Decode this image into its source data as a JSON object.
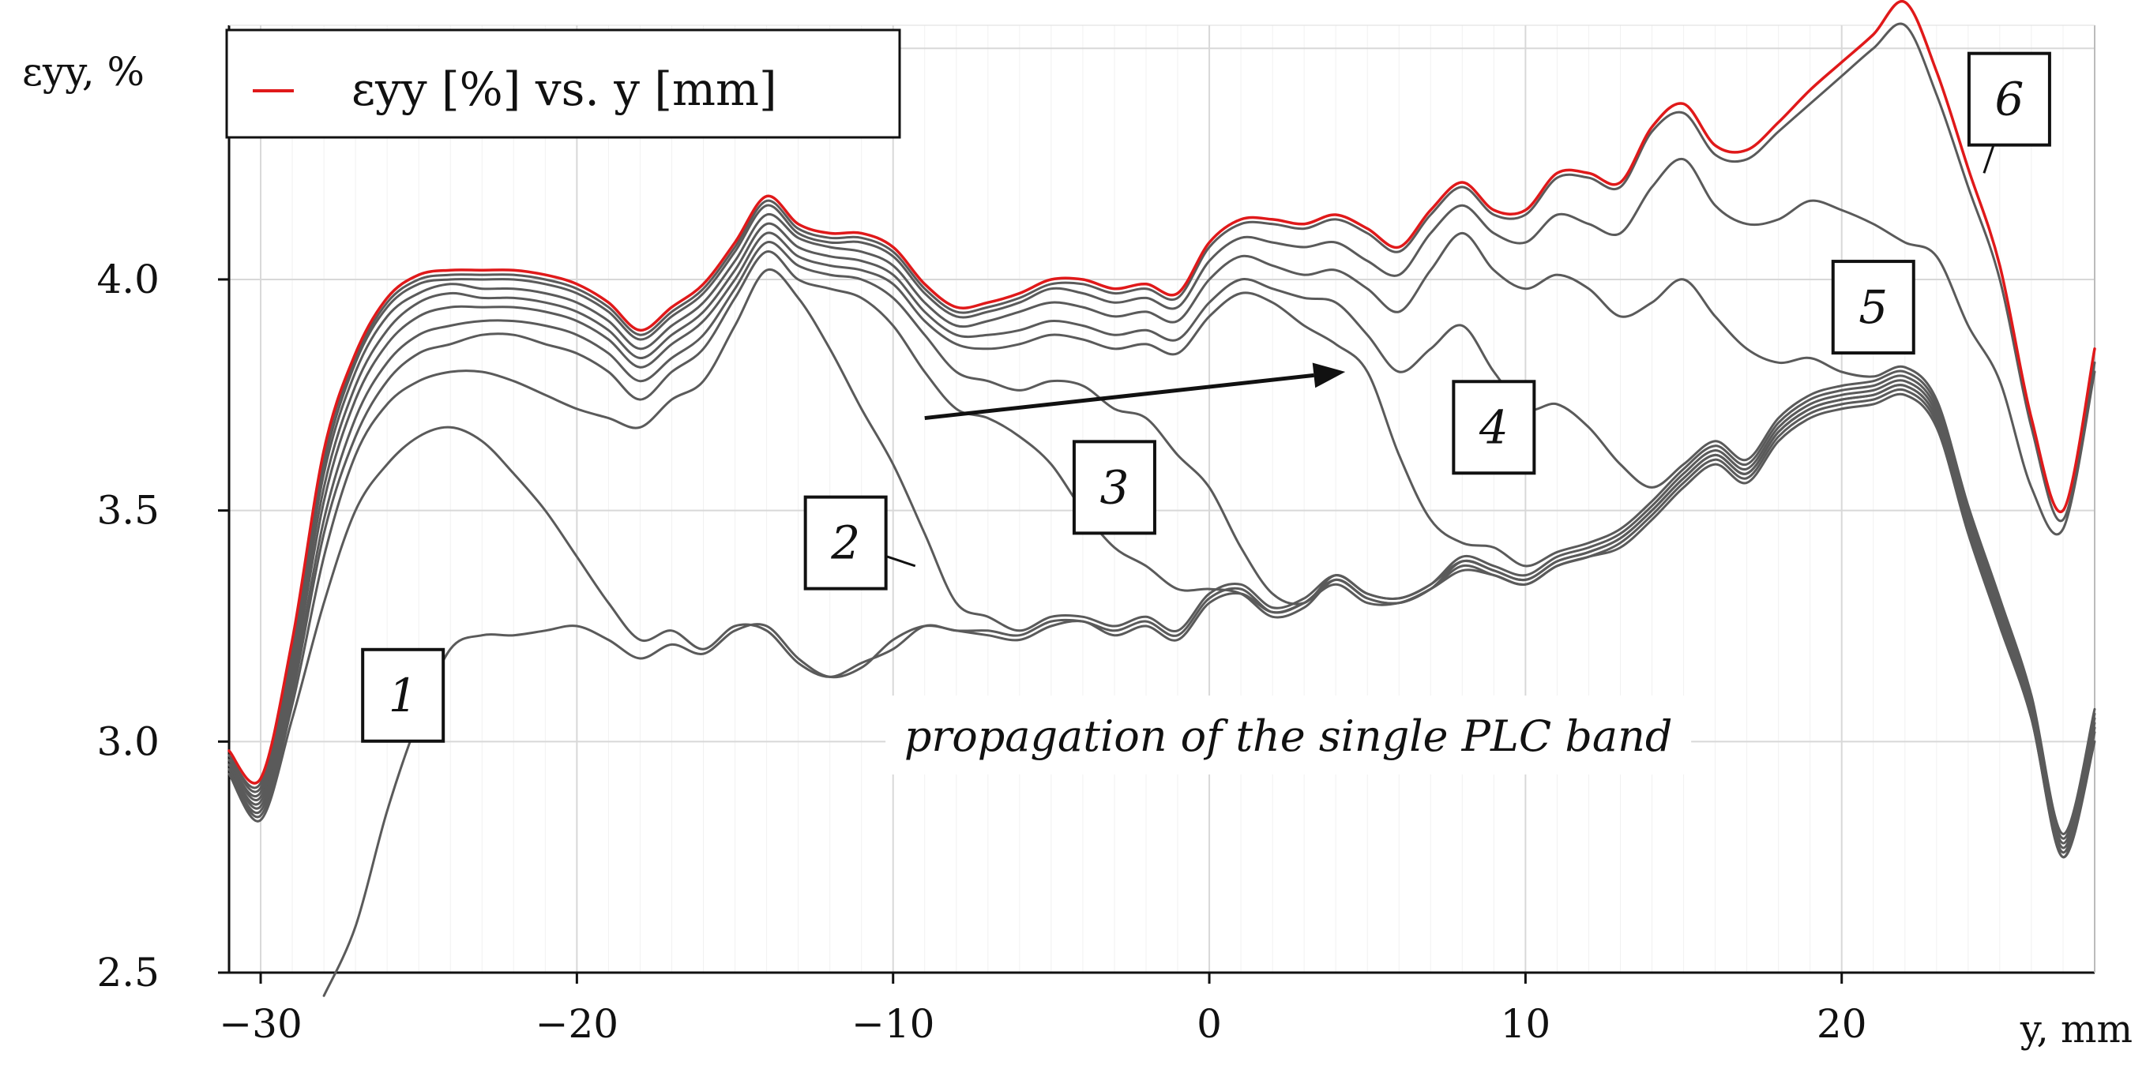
{
  "chart_data": {
    "type": "line",
    "title": "",
    "xlabel": "y, mm",
    "ylabel": "εyy, %",
    "xlim": [
      -31,
      28
    ],
    "ylim": [
      2.5,
      4.55
    ],
    "grid": true,
    "legend": {
      "position": "top-left",
      "entries": [
        {
          "label": "εyy [%] vs. y [mm]",
          "color": "#e0191a"
        }
      ]
    },
    "x_ticks": [
      {
        "value": -30,
        "label": "−30"
      },
      {
        "value": -20,
        "label": "−20"
      },
      {
        "value": -10,
        "label": "−10"
      },
      {
        "value": 0,
        "label": "0"
      },
      {
        "value": 10,
        "label": "10"
      },
      {
        "value": 20,
        "label": "20"
      }
    ],
    "y_ticks": [
      {
        "value": 2.5,
        "label": "2.5"
      },
      {
        "value": 3.0,
        "label": "3.0"
      },
      {
        "value": 3.5,
        "label": "3.5"
      },
      {
        "value": 4.0,
        "label": "4.0"
      }
    ],
    "x": [
      -31,
      -30,
      -29,
      -28,
      -27,
      -26,
      -25,
      -24,
      -23,
      -22,
      -21,
      -20,
      -19,
      -18,
      -17,
      -16,
      -15,
      -14,
      -13,
      -12,
      -11,
      -10,
      -9,
      -8,
      -7,
      -6,
      -5,
      -4,
      -3,
      -2,
      -1,
      0,
      1,
      2,
      3,
      4,
      5,
      6,
      7,
      8,
      9,
      10,
      11,
      12,
      13,
      14,
      15,
      16,
      17,
      18,
      19,
      20,
      21,
      22,
      23,
      24,
      25,
      26,
      27,
      28
    ],
    "series": [
      {
        "name": "profile-1",
        "label": "1",
        "color": "#5a5a5a",
        "values": [
          null,
          null,
          null,
          2.45,
          2.6,
          2.85,
          3.05,
          3.2,
          3.23,
          3.23,
          3.24,
          3.25,
          3.22,
          3.18,
          3.21,
          3.19,
          3.24,
          3.25,
          3.18,
          3.14,
          3.16,
          3.22,
          3.25,
          3.24,
          3.23,
          3.22,
          3.25,
          3.26,
          3.23,
          3.25,
          3.22,
          3.3,
          3.32,
          3.28,
          3.3,
          3.34,
          3.3,
          3.3,
          3.33,
          3.37,
          3.36,
          3.34,
          3.38,
          3.4,
          3.42,
          3.48,
          3.55,
          3.6,
          3.56,
          3.65,
          3.7,
          3.72,
          3.73,
          3.75,
          3.68,
          3.45,
          3.25,
          3.05,
          2.75,
          3.0
        ]
      },
      {
        "name": "profile-2",
        "label": "2",
        "color": "#5a5a5a",
        "values": [
          2.93,
          2.83,
          3.05,
          3.3,
          3.5,
          3.6,
          3.66,
          3.68,
          3.65,
          3.58,
          3.5,
          3.4,
          3.3,
          3.22,
          3.24,
          3.2,
          3.25,
          3.24,
          3.17,
          3.14,
          3.17,
          3.2,
          3.25,
          3.24,
          3.24,
          3.23,
          3.26,
          3.26,
          3.24,
          3.26,
          3.23,
          3.31,
          3.33,
          3.28,
          3.3,
          3.35,
          3.31,
          3.3,
          3.33,
          3.38,
          3.36,
          3.34,
          3.38,
          3.4,
          3.43,
          3.49,
          3.56,
          3.61,
          3.57,
          3.66,
          3.71,
          3.73,
          3.74,
          3.76,
          3.69,
          3.46,
          3.26,
          3.05,
          2.75,
          3.02
        ]
      },
      {
        "name": "profile-2b",
        "label": "",
        "color": "#5a5a5a",
        "values": [
          2.94,
          2.84,
          3.08,
          3.4,
          3.62,
          3.73,
          3.78,
          3.8,
          3.8,
          3.78,
          3.75,
          3.72,
          3.7,
          3.68,
          3.74,
          3.78,
          3.9,
          4.02,
          3.96,
          3.85,
          3.72,
          3.6,
          3.45,
          3.3,
          3.27,
          3.24,
          3.27,
          3.27,
          3.25,
          3.27,
          3.24,
          3.32,
          3.34,
          3.29,
          3.31,
          3.36,
          3.32,
          3.31,
          3.34,
          3.39,
          3.37,
          3.35,
          3.39,
          3.41,
          3.44,
          3.5,
          3.57,
          3.62,
          3.58,
          3.67,
          3.72,
          3.74,
          3.75,
          3.77,
          3.7,
          3.47,
          3.27,
          3.06,
          2.76,
          3.03
        ]
      },
      {
        "name": "profile-3",
        "label": "3",
        "color": "#5a5a5a",
        "values": [
          2.94,
          2.85,
          3.1,
          3.45,
          3.66,
          3.78,
          3.84,
          3.86,
          3.88,
          3.88,
          3.86,
          3.84,
          3.8,
          3.74,
          3.8,
          3.85,
          3.96,
          4.06,
          4.0,
          3.98,
          3.96,
          3.9,
          3.8,
          3.72,
          3.7,
          3.66,
          3.6,
          3.5,
          3.42,
          3.38,
          3.33,
          3.33,
          3.32,
          3.27,
          3.29,
          3.35,
          3.31,
          3.3,
          3.33,
          3.39,
          3.37,
          3.35,
          3.39,
          3.41,
          3.44,
          3.5,
          3.57,
          3.62,
          3.58,
          3.67,
          3.72,
          3.74,
          3.75,
          3.77,
          3.7,
          3.47,
          3.27,
          3.06,
          2.76,
          3.03
        ]
      },
      {
        "name": "profile-3b",
        "label": "",
        "color": "#5a5a5a",
        "values": [
          2.95,
          2.86,
          3.12,
          3.48,
          3.7,
          3.82,
          3.88,
          3.9,
          3.91,
          3.91,
          3.9,
          3.88,
          3.84,
          3.78,
          3.83,
          3.88,
          3.98,
          4.08,
          4.03,
          4.01,
          4.0,
          3.96,
          3.88,
          3.8,
          3.78,
          3.76,
          3.78,
          3.77,
          3.72,
          3.7,
          3.62,
          3.55,
          3.42,
          3.32,
          3.3,
          3.36,
          3.32,
          3.31,
          3.34,
          3.4,
          3.38,
          3.36,
          3.4,
          3.42,
          3.45,
          3.51,
          3.58,
          3.63,
          3.59,
          3.68,
          3.73,
          3.75,
          3.76,
          3.78,
          3.71,
          3.48,
          3.28,
          3.07,
          2.77,
          3.04
        ]
      },
      {
        "name": "profile-4",
        "label": "4",
        "color": "#5a5a5a",
        "values": [
          2.95,
          2.87,
          3.14,
          3.52,
          3.74,
          3.86,
          3.92,
          3.94,
          3.94,
          3.94,
          3.93,
          3.91,
          3.87,
          3.81,
          3.86,
          3.91,
          4.0,
          4.1,
          4.05,
          4.03,
          4.02,
          3.99,
          3.91,
          3.86,
          3.85,
          3.86,
          3.88,
          3.87,
          3.85,
          3.86,
          3.84,
          3.92,
          3.97,
          3.95,
          3.9,
          3.86,
          3.8,
          3.62,
          3.48,
          3.43,
          3.42,
          3.38,
          3.41,
          3.43,
          3.46,
          3.52,
          3.59,
          3.64,
          3.6,
          3.69,
          3.74,
          3.76,
          3.77,
          3.79,
          3.72,
          3.49,
          3.29,
          3.08,
          2.78,
          3.05
        ]
      },
      {
        "name": "profile-4b",
        "label": "",
        "color": "#5a5a5a",
        "values": [
          2.96,
          2.88,
          3.16,
          3.55,
          3.77,
          3.89,
          3.95,
          3.97,
          3.96,
          3.96,
          3.95,
          3.93,
          3.89,
          3.83,
          3.88,
          3.93,
          4.02,
          4.12,
          4.07,
          4.05,
          4.04,
          4.01,
          3.93,
          3.88,
          3.88,
          3.89,
          3.91,
          3.9,
          3.88,
          3.89,
          3.87,
          3.95,
          4.0,
          3.98,
          3.96,
          3.95,
          3.88,
          3.8,
          3.85,
          3.9,
          3.8,
          3.72,
          3.73,
          3.68,
          3.6,
          3.55,
          3.6,
          3.65,
          3.61,
          3.7,
          3.75,
          3.77,
          3.78,
          3.8,
          3.73,
          3.5,
          3.3,
          3.09,
          2.79,
          3.06
        ]
      },
      {
        "name": "profile-5",
        "label": "5",
        "color": "#5a5a5a",
        "values": [
          2.96,
          2.89,
          3.18,
          3.58,
          3.8,
          3.92,
          3.97,
          3.99,
          3.98,
          3.98,
          3.97,
          3.95,
          3.91,
          3.85,
          3.9,
          3.95,
          4.04,
          4.14,
          4.09,
          4.07,
          4.06,
          4.03,
          3.95,
          3.9,
          3.91,
          3.93,
          3.95,
          3.94,
          3.92,
          3.93,
          3.91,
          4.0,
          4.05,
          4.03,
          4.01,
          4.02,
          3.98,
          3.93,
          4.02,
          4.1,
          4.02,
          3.98,
          4.01,
          3.98,
          3.92,
          3.95,
          4.0,
          3.92,
          3.85,
          3.82,
          3.83,
          3.8,
          3.79,
          3.81,
          3.74,
          3.51,
          3.31,
          3.1,
          2.8,
          3.07
        ]
      },
      {
        "name": "profile-5b",
        "label": "",
        "color": "#5a5a5a",
        "values": [
          2.97,
          2.9,
          3.2,
          3.6,
          3.82,
          3.94,
          3.99,
          4.0,
          4.0,
          4.0,
          3.99,
          3.97,
          3.93,
          3.87,
          3.92,
          3.97,
          4.06,
          4.16,
          4.1,
          4.08,
          4.08,
          4.05,
          3.97,
          3.92,
          3.93,
          3.95,
          3.98,
          3.97,
          3.95,
          3.96,
          3.94,
          4.04,
          4.09,
          4.08,
          4.07,
          4.08,
          4.04,
          4.01,
          4.1,
          4.16,
          4.1,
          4.08,
          4.14,
          4.12,
          4.1,
          4.2,
          4.26,
          4.16,
          4.12,
          4.13,
          4.17,
          4.15,
          4.12,
          4.08,
          4.05,
          3.9,
          3.78,
          3.55,
          3.46,
          3.8
        ]
      },
      {
        "name": "profile-6",
        "label": "6",
        "color": "#5a5a5a",
        "values": [
          2.97,
          2.91,
          3.21,
          3.62,
          3.83,
          3.95,
          4.0,
          4.01,
          4.01,
          4.01,
          4.0,
          3.98,
          3.94,
          3.88,
          3.93,
          3.98,
          4.07,
          4.17,
          4.11,
          4.09,
          4.09,
          4.06,
          3.98,
          3.93,
          3.94,
          3.96,
          3.99,
          3.99,
          3.97,
          3.98,
          3.96,
          4.07,
          4.12,
          4.12,
          4.11,
          4.13,
          4.1,
          4.06,
          4.14,
          4.2,
          4.14,
          4.14,
          4.22,
          4.22,
          4.2,
          4.32,
          4.36,
          4.27,
          4.26,
          4.32,
          4.38,
          4.44,
          4.5,
          4.55,
          4.4,
          4.2,
          4.0,
          3.68,
          3.48,
          3.82
        ]
      },
      {
        "name": "legend-series",
        "label": "εyy [%] vs. y [mm]",
        "color": "#e0191a",
        "values": [
          2.98,
          2.92,
          3.22,
          3.63,
          3.84,
          3.96,
          4.01,
          4.02,
          4.02,
          4.02,
          4.01,
          3.99,
          3.95,
          3.89,
          3.94,
          3.99,
          4.08,
          4.18,
          4.12,
          4.1,
          4.1,
          4.07,
          3.99,
          3.94,
          3.95,
          3.97,
          4.0,
          4.0,
          3.98,
          3.99,
          3.97,
          4.08,
          4.13,
          4.13,
          4.12,
          4.14,
          4.11,
          4.07,
          4.15,
          4.21,
          4.15,
          4.15,
          4.23,
          4.23,
          4.21,
          4.33,
          4.38,
          4.29,
          4.28,
          4.34,
          4.41,
          4.47,
          4.53,
          4.6,
          4.45,
          4.24,
          4.03,
          3.7,
          3.5,
          3.85
        ]
      }
    ],
    "curve_labels": [
      {
        "text": "1",
        "x": -25.5,
        "y": 3.1,
        "anchor_x": -24.5,
        "anchor_y": 3.0
      },
      {
        "text": "2",
        "x": -11.5,
        "y": 3.43,
        "anchor_x": -9.3,
        "anchor_y": 3.38
      },
      {
        "text": "3",
        "x": -3,
        "y": 3.55,
        "anchor_x": null,
        "anchor_y": null
      },
      {
        "text": "4",
        "x": 9,
        "y": 3.68,
        "anchor_x": null,
        "anchor_y": null
      },
      {
        "text": "5",
        "x": 21,
        "y": 3.94,
        "anchor_x": null,
        "anchor_y": null
      },
      {
        "text": "6",
        "x": 25.3,
        "y": 4.39,
        "anchor_x": 24.5,
        "anchor_y": 4.23
      }
    ],
    "annotations": [
      {
        "text": "propagation of the single PLC band",
        "x": 2.5,
        "y": 2.98
      }
    ],
    "arrow": {
      "from": [
        -9,
        3.7
      ],
      "to": [
        4.3,
        3.8
      ]
    }
  }
}
